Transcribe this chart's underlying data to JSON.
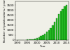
{
  "years": [
    1990,
    1991,
    1992,
    1993,
    1994,
    1995,
    1996,
    1997,
    1998,
    1999,
    2000,
    2001,
    2002,
    2003,
    2004,
    2005,
    2006,
    2007,
    2008,
    2009,
    2010,
    2011,
    2012,
    2013,
    2014,
    2015
  ],
  "values": [
    2,
    4,
    6,
    10,
    18,
    30,
    45,
    65,
    90,
    130,
    190,
    280,
    380,
    500,
    650,
    820,
    1000,
    1200,
    1500,
    1800,
    2200,
    2600,
    2900,
    3100,
    3400,
    3500
  ],
  "bar_color": "#22bb22",
  "bar_edge_color": "#005500",
  "ylabel": "Number of publications / year",
  "xlabel": "Year",
  "ylim": [
    0,
    3850
  ],
  "yticks": [
    0,
    500,
    1000,
    1500,
    2000,
    2500,
    3000,
    3500
  ],
  "xticks": [
    1990,
    1995,
    2000,
    2005,
    2010,
    2015
  ],
  "bg_color": "#f0f0e8",
  "axis_fontsize": 3.0,
  "tick_fontsize": 3.0
}
